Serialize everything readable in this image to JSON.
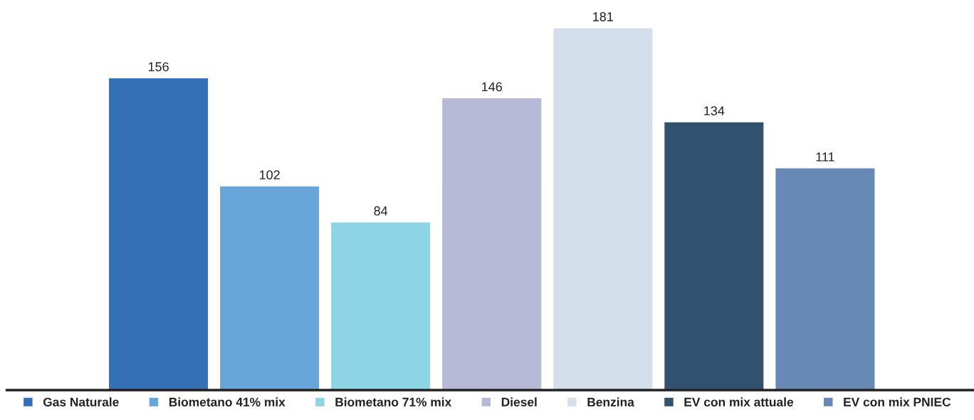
{
  "chart_data": {
    "type": "bar",
    "categories": [
      null
    ],
    "series": [
      {
        "name": "Gas Naturale",
        "color": "#356fb6",
        "values": [
          156
        ]
      },
      {
        "name": "Biometano 41% mix",
        "color": "#68a5d8",
        "values": [
          102
        ]
      },
      {
        "name": "Biometano 71% mix",
        "color": "#8dd5e4",
        "values": [
          84
        ]
      },
      {
        "name": "Diesel",
        "color": "#b7bad6",
        "values": [
          146
        ]
      },
      {
        "name": "Benzina",
        "color": "#d3dfea",
        "values": [
          181
        ]
      },
      {
        "name": "EV con mix attuale",
        "color": "#31516f",
        "values": [
          134
        ]
      },
      {
        "name": "EV con mix PNIEC",
        "color": "#6889b5",
        "values": [
          111
        ]
      }
    ],
    "data_labels": true,
    "legend": "bottom"
  }
}
